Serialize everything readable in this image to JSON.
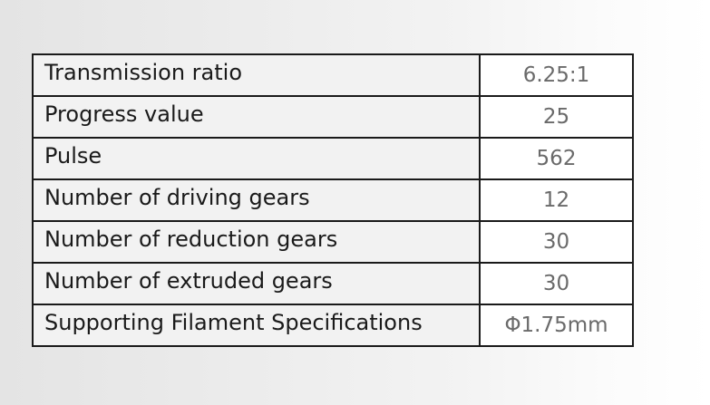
{
  "specs": [
    {
      "label": "Transmission ratio",
      "value": "6.25:1"
    },
    {
      "label": "Progress value",
      "value": "25"
    },
    {
      "label": "Pulse",
      "value": "562"
    },
    {
      "label": "Number of driving gears",
      "value": "12"
    },
    {
      "label": "Number of reduction gears",
      "value": "30"
    },
    {
      "label": "Number of extruded gears",
      "value": "30"
    },
    {
      "label": "Supporting Filament Specifications",
      "value": "Φ1.75mm"
    }
  ]
}
